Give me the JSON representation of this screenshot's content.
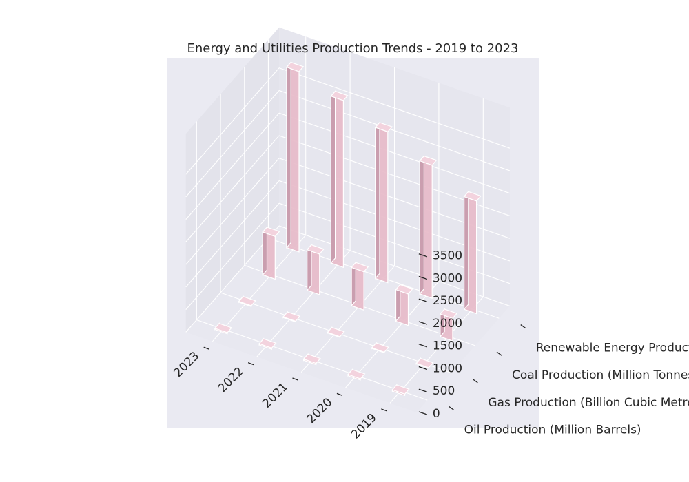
{
  "chart_data": {
    "type": "bar",
    "projection": "3d",
    "title": "Energy and Utilities Production Trends - 2019 to 2023",
    "xlabel": "",
    "ylabel": "",
    "zlabel": "",
    "categories": [
      "2019",
      "2020",
      "2021",
      "2022",
      "2023"
    ],
    "series": [
      {
        "name": "Oil Production (Million Barrels)",
        "values": [
          30,
          28,
          27,
          26,
          25
        ]
      },
      {
        "name": "Gas Production (Billion Cubic Metres)",
        "values": [
          12,
          14,
          15,
          16,
          17
        ]
      },
      {
        "name": "Coal Production (Million Tonnes)",
        "values": [
          500,
          700,
          850,
          900,
          950
        ]
      },
      {
        "name": "Renewable Energy Production (GWh)",
        "values": [
          2500,
          2950,
          3350,
          3700,
          4000
        ]
      }
    ],
    "zticks": [
      "0",
      "500",
      "1000",
      "1500",
      "2000",
      "2500",
      "3000",
      "3500"
    ],
    "zlim": [
      0,
      4000
    ],
    "bar_color": "#e7b9c8",
    "edge_color": "#ffffff",
    "pane_color": "#eaeaf2",
    "grid": true,
    "legend": "none"
  }
}
